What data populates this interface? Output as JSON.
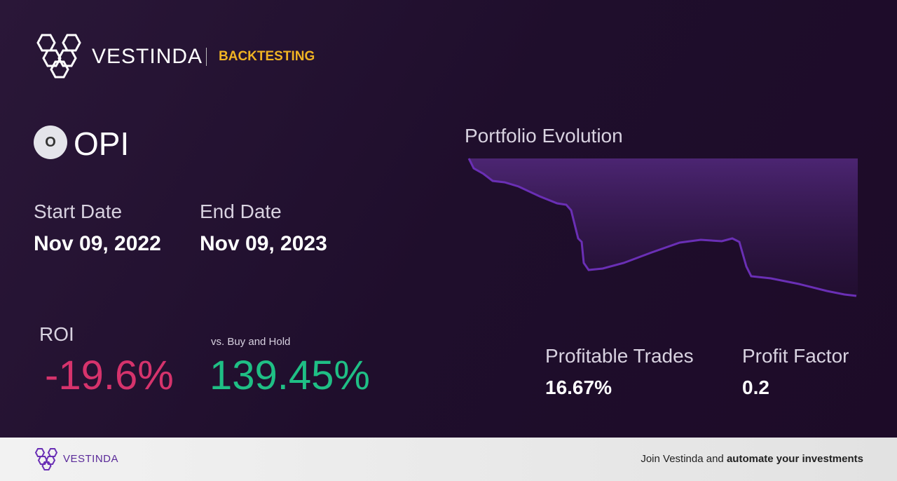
{
  "header": {
    "brand": "VESTINDA",
    "section": "BACKTESTING"
  },
  "asset": {
    "icon_letter": "O",
    "ticker": "OPI"
  },
  "dates": {
    "start_label": "Start Date",
    "start_value": "Nov 09, 2022",
    "end_label": "End Date",
    "end_value": "Nov 09, 2023"
  },
  "chart_title": "Portfolio Evolution",
  "metrics": {
    "roi_label": "ROI",
    "roi_value": "-19.6%",
    "vs_label": "vs. Buy and Hold",
    "vs_value": "139.45%",
    "trades_label": "Profitable Trades",
    "trades_value": "16.67%",
    "pf_label": "Profit Factor",
    "pf_value": "0.2"
  },
  "footer": {
    "brand": "VESTINDA",
    "cta_prefix": "Join Vestinda and",
    "cta_bold": "automate your investments"
  }
}
